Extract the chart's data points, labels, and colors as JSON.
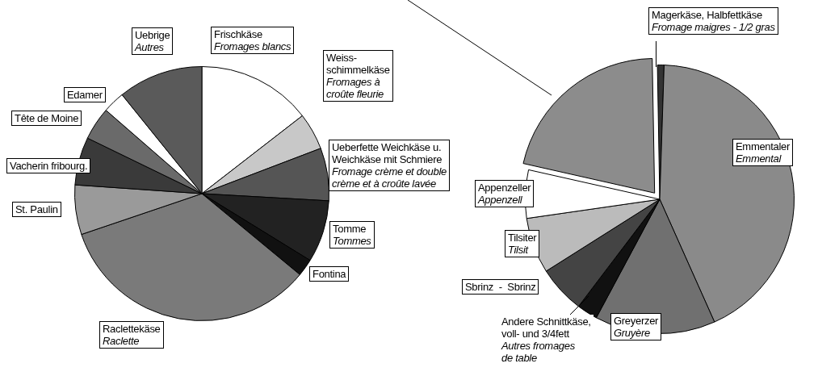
{
  "chart_data": [
    {
      "type": "pie",
      "categories": [
        "Frischkäse\nFromages blancs",
        "Weiss-\nschimmelkäse\nFromages à\ncroûte fleurie",
        "Ueberfette Weichkäse u.\nWeichkäse mit Schmiere\nFromage crème et double\ncrème et à croûte lavée",
        "Tomme\nTommes",
        "Fontina",
        "Raclettekäse\nRaclette",
        "St. Paulin",
        "Vacherin fribourg.",
        "Tête de Moine",
        "Edamer",
        "Uebrige\nAutres"
      ],
      "values": [
        14.5,
        4.7,
        6.7,
        7.9,
        2.2,
        33.8,
        6.3,
        6.1,
        4.2,
        2.8,
        10.8
      ],
      "colors": [
        "#ffffff",
        "#c8c8c8",
        "#555555",
        "#222222",
        "#111111",
        "#7a7a7a",
        "#9a9a9a",
        "#3a3a3a",
        "#6a6a6a",
        "#ffffff",
        "#5a5a5a"
      ]
    },
    {
      "type": "pie",
      "categories": [
        "Magerkäse, Halbfettkäse\nFromage maigres - 1/2 gras",
        "Emmentaler\nEmmental",
        "Greyerzer\nGruyère",
        "Andere Schnittkäse,\nvoll- und 3/4fett\nAutres fromages\nde table",
        "Sbrinz  -  Sbrinz",
        "Tilsiter\nTilsit",
        "Appenzeller\nAppenzell",
        null
      ],
      "values": [
        0.8,
        42.8,
        14.5,
        2.5,
        5.7,
        6.7,
        5.8,
        21.2
      ],
      "colors": [
        "#333333",
        "#8a8a8a",
        "#707070",
        "#111111",
        "#444444",
        "#bbbbbb",
        "#ffffff",
        "#8c8c8c"
      ]
    }
  ]
}
